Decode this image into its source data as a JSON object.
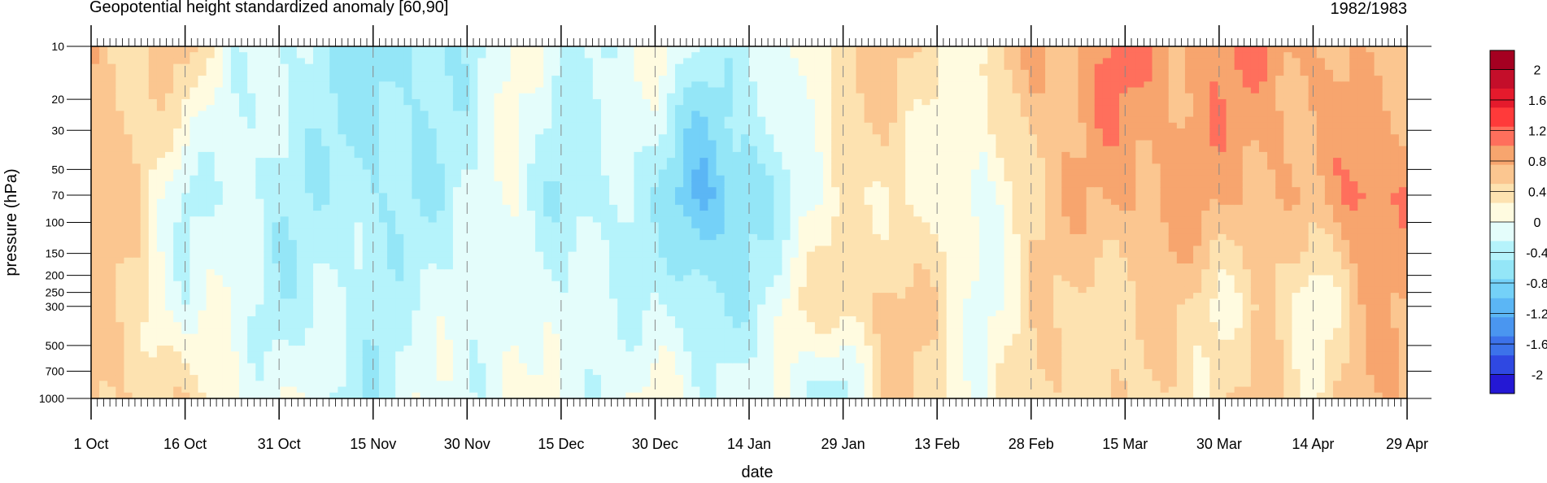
{
  "chart_data": {
    "type": "heatmap",
    "title": "Geopotential height standardized anomaly [60,90]",
    "subtitle": "1982/1983",
    "xlabel": "date",
    "ylabel": "pressure (hPa)",
    "x_ticks": [
      "1 Oct",
      "16 Oct",
      "31 Oct",
      "15 Nov",
      "30 Nov",
      "15 Dec",
      "30 Dec",
      "14 Jan",
      "29 Jan",
      "13 Feb",
      "28 Feb",
      "15 Mar",
      "30 Mar",
      "14 Apr",
      "29 Apr"
    ],
    "y_scale": "log",
    "y_ticks": [
      10,
      20,
      30,
      50,
      70,
      100,
      150,
      200,
      250,
      300,
      500,
      700,
      1000
    ],
    "colorbar": {
      "labels": [
        "2",
        "1.6",
        "1.2",
        "0.8",
        "0.4",
        "0",
        "-0.4",
        "-0.8",
        "-1.2",
        "-1.6",
        "-2"
      ],
      "colors": [
        "#a50021",
        "#c40e2a",
        "#e51a2c",
        "#ff3a3a",
        "#ff6f5c",
        "#f7a56e",
        "#fbc690",
        "#fde2b0",
        "#fffbe0",
        "#e4fdfb",
        "#b5f3fb",
        "#94e6f7",
        "#74d1f8",
        "#5bb6f5",
        "#4a96f0",
        "#3c72ea",
        "#2f48e2",
        "#2418d4"
      ]
    },
    "columns": [
      {
        "date": "1 Oct",
        "p10": 0.5,
        "p70": 0.5,
        "p300": 0.2,
        "p1000": 0.3
      },
      {
        "date": "8 Oct",
        "p10": 0.2,
        "p70": 0.1,
        "p300": 0.2,
        "p1000": 0.3
      },
      {
        "date": "16 Oct",
        "p10": 0.3,
        "p70": -0.5,
        "p300": -0.4,
        "p1000": 0.1
      },
      {
        "date": "23 Oct",
        "p10": -0.3,
        "p70": -0.4,
        "p300": -0.3,
        "p1000": -0.2
      },
      {
        "date": "31 Oct",
        "p10": -0.5,
        "p70": -0.7,
        "p300": -0.6,
        "p1000": -0.3
      },
      {
        "date": "8 Nov",
        "p10": -0.7,
        "p70": -0.6,
        "p300": -0.5,
        "p1000": -0.5
      },
      {
        "date": "15 Nov",
        "p10": -0.9,
        "p70": -0.8,
        "p300": -0.6,
        "p1000": -0.7
      },
      {
        "date": "23 Nov",
        "p10": -0.8,
        "p70": -0.7,
        "p300": -0.4,
        "p1000": -0.3
      },
      {
        "date": "30 Nov",
        "p10": -0.6,
        "p70": -0.5,
        "p300": -0.5,
        "p1000": -0.4
      },
      {
        "date": "8 Dec",
        "p10": -0.2,
        "p70": -0.3,
        "p300": -0.2,
        "p1000": -0.1
      },
      {
        "date": "15 Dec",
        "p10": -0.5,
        "p70": -0.7,
        "p300": -0.5,
        "p1000": -0.4
      },
      {
        "date": "23 Dec",
        "p10": -0.4,
        "p70": -0.6,
        "p300": -0.4,
        "p1000": -0.3
      },
      {
        "date": "30 Dec",
        "p10": -0.2,
        "p70": -0.6,
        "p300": -0.5,
        "p1000": -0.2
      },
      {
        "date": "7 Jan",
        "p10": -0.5,
        "p70": -1.4,
        "p300": -0.8,
        "p1000": -0.4
      },
      {
        "date": "14 Jan",
        "p10": -0.6,
        "p70": -0.9,
        "p300": -0.6,
        "p1000": -0.2
      },
      {
        "date": "22 Jan",
        "p10": -0.2,
        "p70": -0.4,
        "p300": -0.1,
        "p1000": -0.5
      },
      {
        "date": "29 Jan",
        "p10": 0.3,
        "p70": -0.1,
        "p300": 0.2,
        "p1000": -0.6
      },
      {
        "date": "6 Feb",
        "p10": 0.3,
        "p70": 0.1,
        "p300": 0.4,
        "p1000": 0.3
      },
      {
        "date": "13 Feb",
        "p10": 0.1,
        "p70": -0.1,
        "p300": 0.1,
        "p1000": 0.1
      },
      {
        "date": "20 Feb",
        "p10": -0.1,
        "p70": -0.4,
        "p300": -0.3,
        "p1000": -0.2
      },
      {
        "date": "28 Feb",
        "p10": 0.6,
        "p70": 0.3,
        "p300": 0.1,
        "p1000": 0.2
      },
      {
        "date": "7 Mar",
        "p10": 0.6,
        "p70": 0.4,
        "p300": 0.2,
        "p1000": 0.3
      },
      {
        "date": "15 Mar",
        "p10": 0.8,
        "p70": 0.6,
        "p300": 0.2,
        "p1000": 0.1
      },
      {
        "date": "23 Mar",
        "p10": 0.6,
        "p70": 0.6,
        "p300": 0.3,
        "p1000": 0.2
      },
      {
        "date": "30 Mar",
        "p10": 0.7,
        "p70": 0.5,
        "p300": 0.0,
        "p1000": 0.1
      },
      {
        "date": "7 Apr",
        "p10": 0.7,
        "p70": 0.6,
        "p300": 0.2,
        "p1000": 0.3
      },
      {
        "date": "14 Apr",
        "p10": 0.6,
        "p70": 0.3,
        "p300": -0.3,
        "p1000": 0.1
      },
      {
        "date": "22 Apr",
        "p10": 0.3,
        "p70": 0.9,
        "p300": 0.5,
        "p1000": 0.4
      },
      {
        "date": "29 Apr",
        "p10": 0.4,
        "p70": 0.7,
        "p300": 0.4,
        "p1000": 0.4
      }
    ]
  }
}
